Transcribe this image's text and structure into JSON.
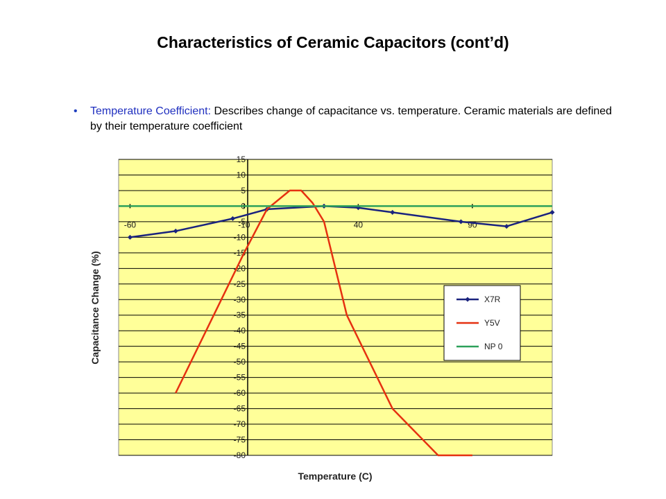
{
  "slide": {
    "title": "Characteristics of Ceramic Capacitors (cont’d)",
    "bullet_lead": "Temperature  Coefficient:",
    "bullet_rest": " Describes change of capacitance vs. temperature. Ceramic materials are defined by their temperature  coefficient"
  },
  "chart_data": {
    "type": "line",
    "xlabel": "Temperature (C)",
    "ylabel": "Capacitance Change (%)",
    "xlim": [
      -65,
      125
    ],
    "ylim": [
      -80,
      15
    ],
    "x_ticks": [
      "-60",
      "-10",
      "40",
      "90"
    ],
    "y_ticks": [
      "15",
      "10",
      "5",
      "0",
      "-5",
      "-10",
      "-15",
      "-20",
      "-25",
      "-30",
      "-35",
      "-40",
      "-45",
      "-50",
      "-55",
      "-60",
      "-65",
      "-70",
      "-75",
      "-80"
    ],
    "grid": true,
    "legend_position": "right",
    "colors": {
      "plot_bg": "#ffff99",
      "grid": "#000000",
      "x7r": "#1a237e",
      "y5v": "#e53010",
      "np0": "#2ca05a"
    },
    "series": [
      {
        "name": "X7R",
        "x": [
          -60,
          -40,
          -15,
          0,
          25,
          40,
          55,
          85,
          105,
          125
        ],
        "y": [
          -10,
          -8,
          -4,
          -1,
          0,
          -0.5,
          -2,
          -5,
          -6.5,
          -2
        ]
      },
      {
        "name": "Y5V",
        "x": [
          -40,
          -20,
          -10,
          0,
          10,
          15,
          20,
          25,
          35,
          55,
          75,
          90
        ],
        "y": [
          -60,
          -30,
          -15,
          -1,
          5,
          5,
          1,
          -5,
          -35,
          -65,
          -80,
          -80
        ]
      },
      {
        "name": "NP 0",
        "x": [
          -65,
          125
        ],
        "y": [
          0,
          0
        ]
      }
    ]
  }
}
